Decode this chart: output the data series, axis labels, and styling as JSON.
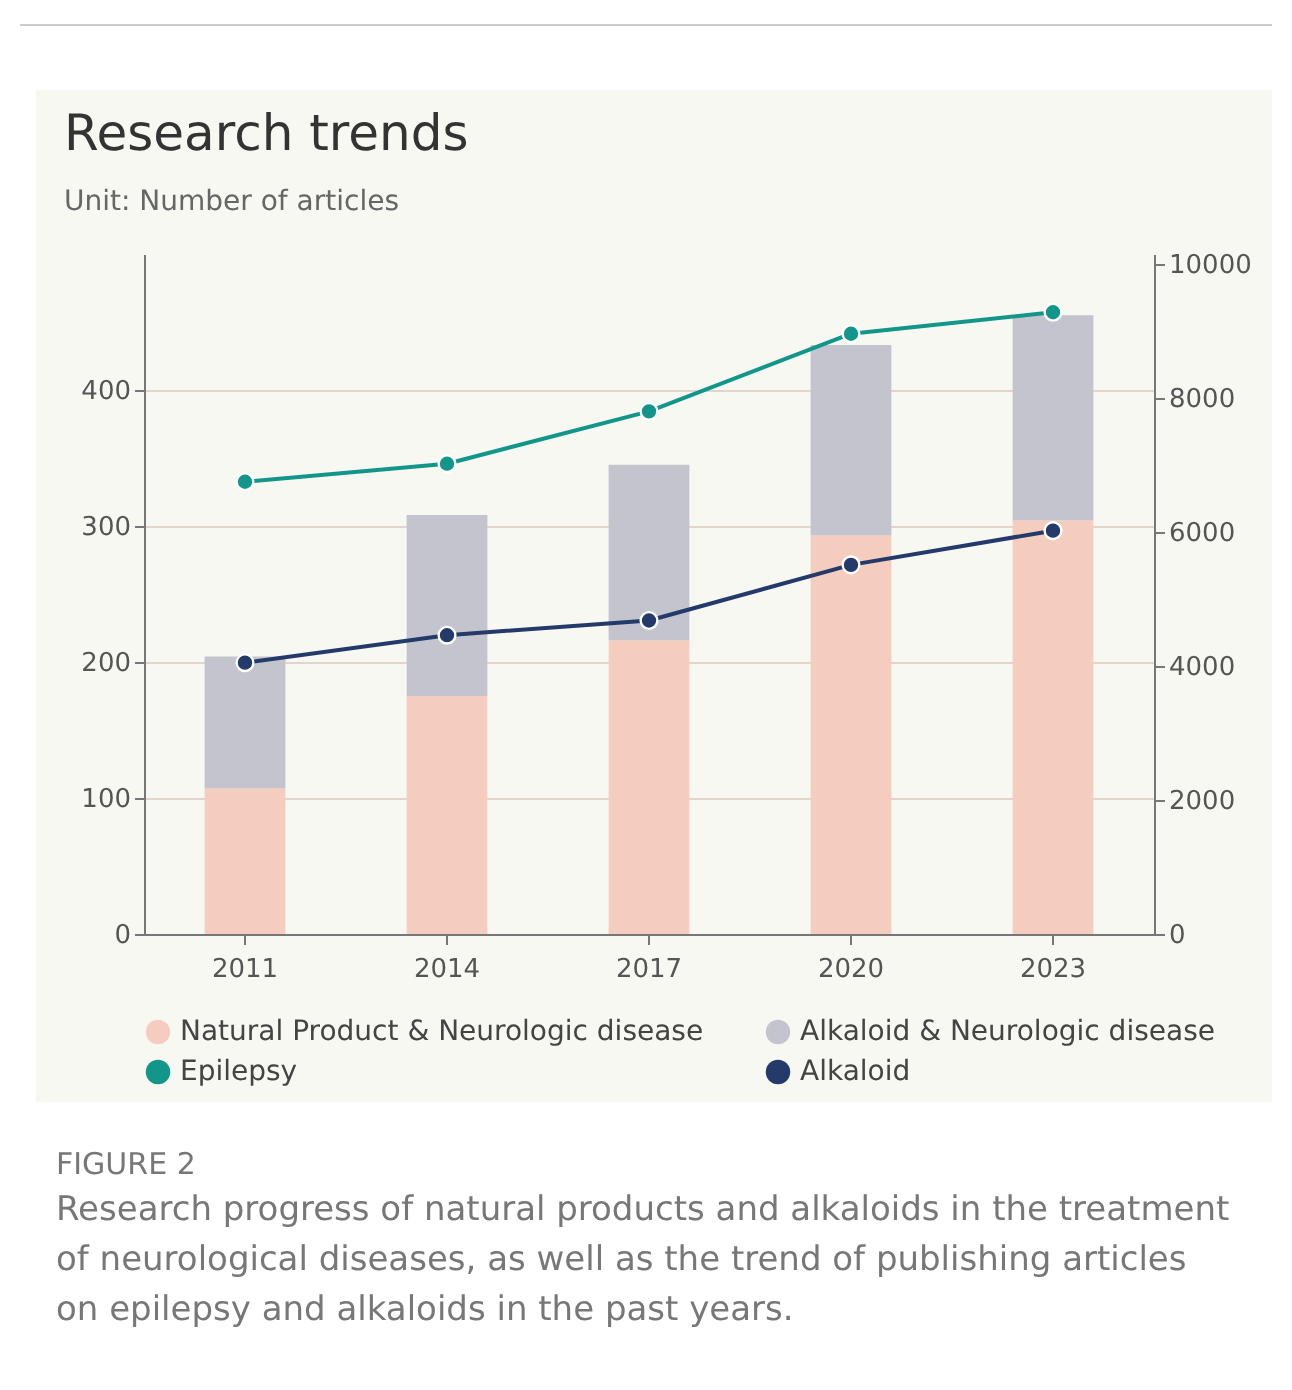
{
  "chart_data": {
    "type": "bar",
    "title": "Research trends",
    "subtitle": "Unit: Number of articles",
    "categories": [
      "2011",
      "2014",
      "2017",
      "2020",
      "2023"
    ],
    "series": [
      {
        "name": "Natural Product & Neurologic disease",
        "color": "#f4cdbf",
        "values": [
          107,
          175,
          216,
          293,
          304
        ]
      },
      {
        "name": "Alkaloid & Neurologic disease",
        "color": "#c4c4ce",
        "values": [
          97,
          133,
          129,
          140,
          151
        ]
      },
      {
        "name": "Epilepsy",
        "type": "line",
        "axis": "y2",
        "color": "#12968a",
        "values": [
          6750,
          7020,
          7800,
          8960,
          9280
        ]
      },
      {
        "name": "Alkaloid",
        "type": "line",
        "axis": "y2",
        "color": "#233a6a",
        "values": [
          4050,
          4460,
          4680,
          5510,
          6020
        ]
      }
    ],
    "stacked": true,
    "ylim": [
      0,
      500
    ],
    "yticks": [
      0,
      100,
      200,
      300,
      400
    ],
    "y2lim": [
      0,
      10150
    ],
    "y2ticks": [
      0,
      2000,
      4000,
      6000,
      8000,
      10000
    ],
    "grid": "y",
    "legend": "bottom",
    "marker": "circle",
    "line_style": "solid",
    "annotations": [
      "FIGURE 2",
      "Research progress of natural products and alkaloids in the treatment of neurological diseases, as well as the trend of publishing articles on epilepsy and alkaloids in the past years."
    ]
  }
}
